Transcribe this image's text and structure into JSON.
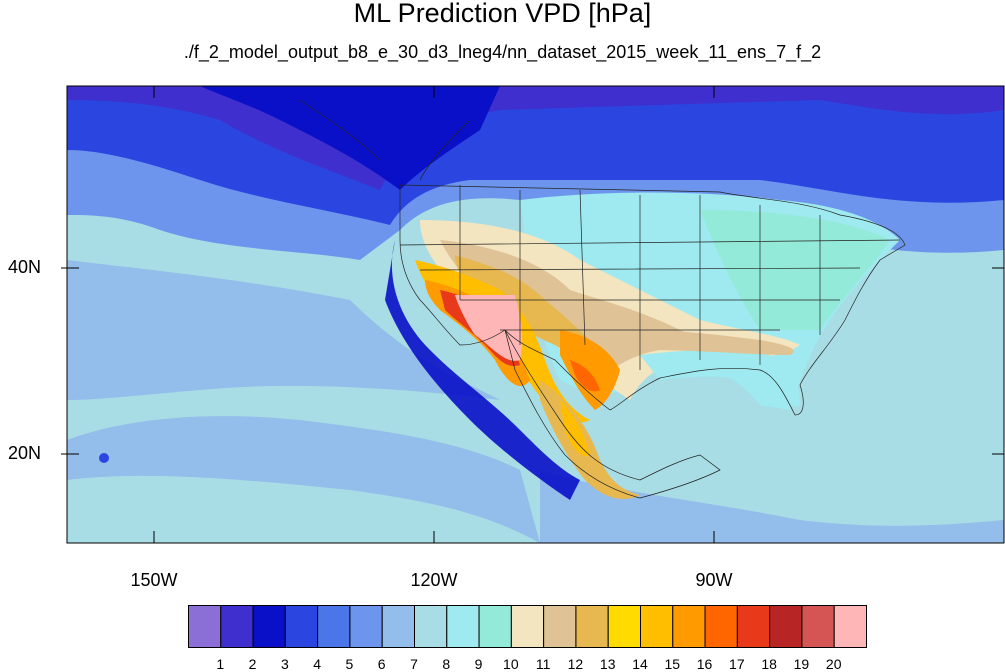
{
  "title": "ML Prediction VPD [hPa]",
  "subtitle": "./f_2_model_output_b8_e_30_d3_lneg4/nn_dataset_2015_week_11_ens_7_f_2",
  "axes": {
    "lat_labels": [
      "40N",
      "20N"
    ],
    "lon_labels": [
      "150W",
      "120W",
      "90W"
    ]
  },
  "colorbar": {
    "labels": [
      "1",
      "2",
      "3",
      "4",
      "5",
      "6",
      "7",
      "8",
      "9",
      "10",
      "11",
      "12",
      "13",
      "14",
      "15",
      "16",
      "17",
      "18",
      "19",
      "20"
    ],
    "colors": [
      "#8b6fd6",
      "#3f2fce",
      "#0a0fc8",
      "#2b46e0",
      "#4a76ea",
      "#6d95ee",
      "#93bdea",
      "#a8dde5",
      "#9eeaf0",
      "#94ead8",
      "#f3e5c0",
      "#dfc396",
      "#e7b84f",
      "#ffdb00",
      "#ffbe00",
      "#ff9a00",
      "#ff6600",
      "#e83a1a",
      "#b82525",
      "#d55454",
      "#ffb6b6"
    ]
  }
}
